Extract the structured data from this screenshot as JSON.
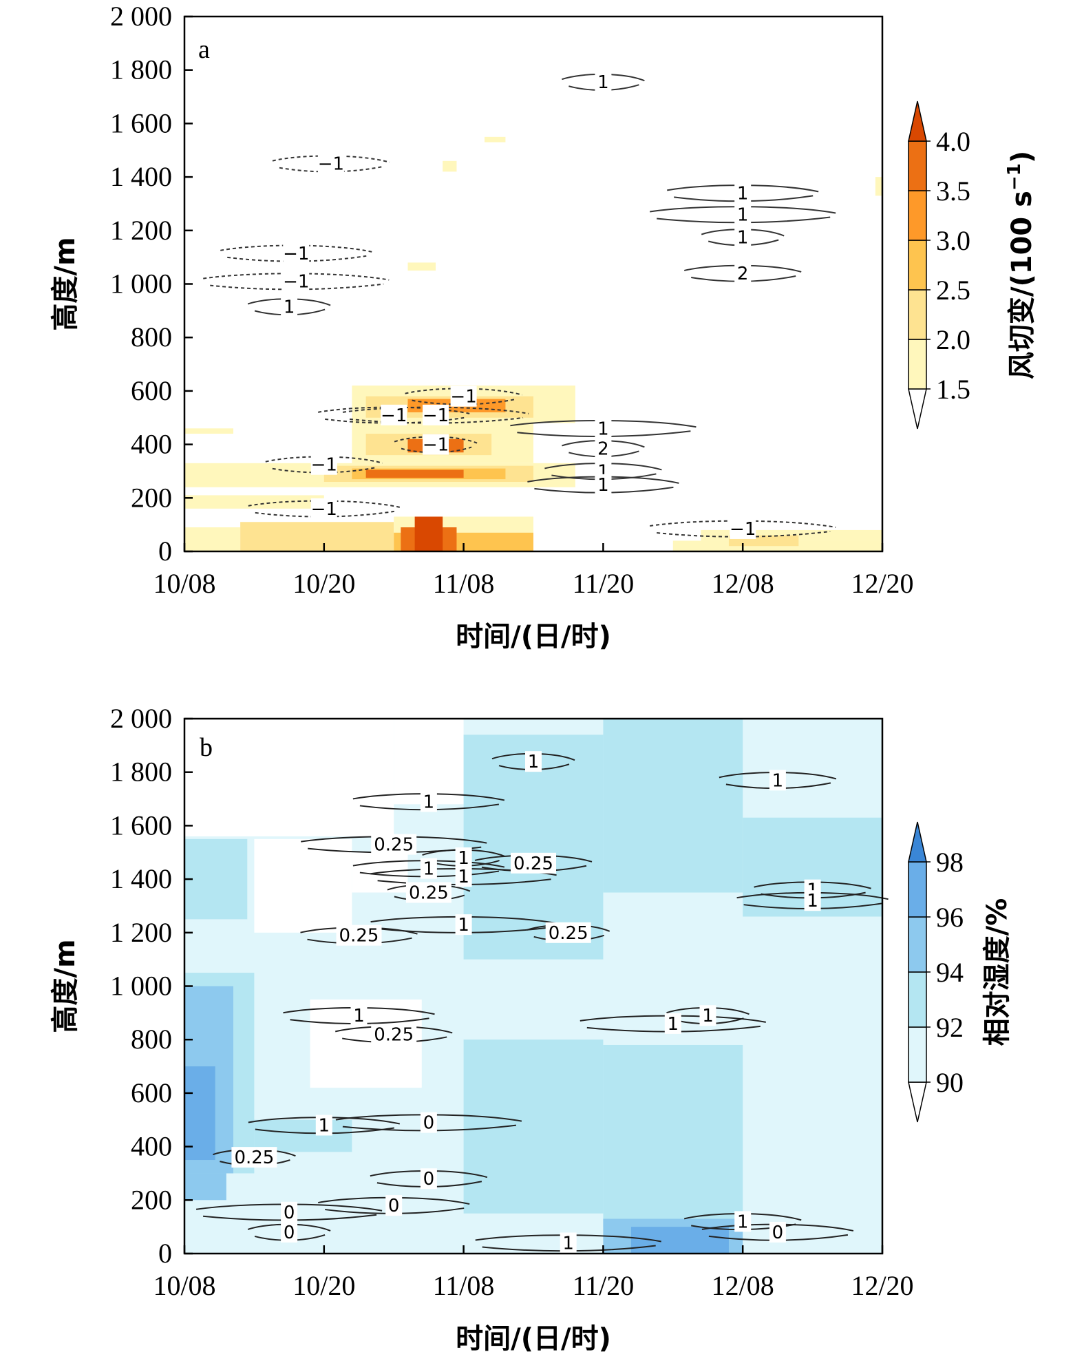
{
  "chart_data": [
    {
      "panel": "a",
      "type": "heatmap",
      "xlabel": "时间/(日/时)",
      "ylabel": "高度/m",
      "x_ticks": [
        "10/08",
        "10/20",
        "11/08",
        "11/20",
        "12/08",
        "12/20"
      ],
      "y_ticks": [
        "0",
        "200",
        "400",
        "600",
        "800",
        "1 000",
        "1 200",
        "1 400",
        "1 600",
        "1 800",
        "2 000"
      ],
      "ylim": [
        0,
        2000
      ],
      "colorbar": {
        "title": "风切变/(100 s",
        "title_sup": "−1",
        "title_end": ")",
        "levels": [
          "1.5",
          "2.0",
          "2.5",
          "3.0",
          "3.5",
          "4.0"
        ],
        "colors": [
          "#ffffff",
          "#fff7bc",
          "#fee391",
          "#fec44f",
          "#fe9929",
          "#ec7014",
          "#d94801"
        ]
      },
      "regions": [
        {
          "x0": 0.0,
          "x1": 0.4,
          "y0": 0,
          "y1": 90,
          "level": 1
        },
        {
          "x0": 0.4,
          "x1": 1.5,
          "y0": 0,
          "y1": 110,
          "level": 2
        },
        {
          "x0": 1.5,
          "x1": 2.5,
          "y0": 0,
          "y1": 130,
          "level": 1
        },
        {
          "x0": 1.5,
          "x1": 2.5,
          "y0": 0,
          "y1": 70,
          "level": 3
        },
        {
          "x0": 1.55,
          "x1": 1.95,
          "y0": 0,
          "y1": 90,
          "level": 5
        },
        {
          "x0": 1.65,
          "x1": 1.85,
          "y0": 0,
          "y1": 130,
          "level": 6
        },
        {
          "x0": 0.0,
          "x1": 1.0,
          "y0": 160,
          "y1": 210,
          "level": 1
        },
        {
          "x0": 0.0,
          "x1": 2.8,
          "y0": 240,
          "y1": 330,
          "level": 1
        },
        {
          "x0": 1.0,
          "x1": 2.5,
          "y0": 260,
          "y1": 320,
          "level": 2
        },
        {
          "x0": 1.2,
          "x1": 2.3,
          "y0": 270,
          "y1": 310,
          "level": 3
        },
        {
          "x0": 1.3,
          "x1": 2.0,
          "y0": 275,
          "y1": 305,
          "level": 5
        },
        {
          "x0": 1.2,
          "x1": 2.5,
          "y0": 330,
          "y1": 480,
          "level": 1
        },
        {
          "x0": 1.3,
          "x1": 2.2,
          "y0": 360,
          "y1": 440,
          "level": 2
        },
        {
          "x0": 1.6,
          "x1": 2.0,
          "y0": 370,
          "y1": 420,
          "level": 5
        },
        {
          "x0": 1.2,
          "x1": 2.8,
          "y0": 480,
          "y1": 620,
          "level": 1
        },
        {
          "x0": 1.3,
          "x1": 2.5,
          "y0": 500,
          "y1": 580,
          "level": 2
        },
        {
          "x0": 1.6,
          "x1": 2.3,
          "y0": 520,
          "y1": 570,
          "level": 4
        },
        {
          "x0": 0.0,
          "x1": 0.35,
          "y0": 440,
          "y1": 460,
          "level": 1
        },
        {
          "x0": 1.6,
          "x1": 1.8,
          "y0": 1050,
          "y1": 1080,
          "level": 1
        },
        {
          "x0": 1.85,
          "x1": 1.95,
          "y0": 1420,
          "y1": 1460,
          "level": 1
        },
        {
          "x0": 2.15,
          "x1": 2.3,
          "y0": 1530,
          "y1": 1550,
          "level": 1
        },
        {
          "x0": 3.5,
          "x1": 5.0,
          "y0": 0,
          "y1": 40,
          "level": 1
        },
        {
          "x0": 3.7,
          "x1": 5.0,
          "y0": 40,
          "y1": 80,
          "level": 1
        },
        {
          "x0": 3.9,
          "x1": 4.4,
          "y0": 20,
          "y1": 60,
          "level": 2
        },
        {
          "x0": 4.95,
          "x1": 5.0,
          "y0": 1330,
          "y1": 1400,
          "level": 1
        }
      ],
      "contour_labels": [
        {
          "text": "1",
          "x": 3.0,
          "y": 1755
        },
        {
          "text": "−1",
          "x": 1.05,
          "y": 1450
        },
        {
          "text": "1",
          "x": 4.0,
          "y": 1340
        },
        {
          "text": "1",
          "x": 4.0,
          "y": 1260
        },
        {
          "text": "1",
          "x": 4.0,
          "y": 1175
        },
        {
          "text": "2",
          "x": 4.0,
          "y": 1040
        },
        {
          "text": "−1",
          "x": 0.8,
          "y": 1115
        },
        {
          "text": "−1",
          "x": 0.8,
          "y": 1010
        },
        {
          "text": "1",
          "x": 0.75,
          "y": 915
        },
        {
          "text": "−1",
          "x": 2.0,
          "y": 580
        },
        {
          "text": "−1",
          "x": 1.5,
          "y": 510
        },
        {
          "text": "−1",
          "x": 1.8,
          "y": 510
        },
        {
          "text": "−1",
          "x": 1.8,
          "y": 400
        },
        {
          "text": "−1",
          "x": 1.0,
          "y": 325
        },
        {
          "text": "−1",
          "x": 1.0,
          "y": 160
        },
        {
          "text": "1",
          "x": 3.0,
          "y": 460
        },
        {
          "text": "2",
          "x": 3.0,
          "y": 385
        },
        {
          "text": "1",
          "x": 3.0,
          "y": 300
        },
        {
          "text": "1",
          "x": 3.0,
          "y": 250
        },
        {
          "text": "−1",
          "x": 4.0,
          "y": 85
        }
      ]
    },
    {
      "panel": "b",
      "type": "heatmap",
      "xlabel": "时间/(日/时)",
      "ylabel": "高度/m",
      "x_ticks": [
        "10/08",
        "10/20",
        "11/08",
        "11/20",
        "12/08",
        "12/20"
      ],
      "y_ticks": [
        "0",
        "200",
        "400",
        "600",
        "800",
        "1 000",
        "1 200",
        "1 400",
        "1 600",
        "1 800",
        "2 000"
      ],
      "ylim": [
        0,
        2000
      ],
      "colorbar": {
        "title": "相对湿度/%",
        "levels": [
          "90",
          "92",
          "94",
          "96",
          "98"
        ],
        "colors": [
          "#ffffff",
          "#e0f6fb",
          "#b4e6f2",
          "#8dc9ee",
          "#6aaee8",
          "#3a86d6"
        ]
      },
      "regions": [
        {
          "x0": 0.0,
          "x1": 5.0,
          "y0": 0,
          "y1": 2000,
          "level": 1
        },
        {
          "x0": 0.0,
          "x1": 1.5,
          "y0": 1560,
          "y1": 2000,
          "level": 0
        },
        {
          "x0": 1.5,
          "x1": 2.0,
          "y0": 1680,
          "y1": 2000,
          "level": 0
        },
        {
          "x0": 0.9,
          "x1": 1.7,
          "y0": 620,
          "y1": 950,
          "level": 0
        },
        {
          "x0": 0.5,
          "x1": 1.2,
          "y0": 1200,
          "y1": 1550,
          "level": 0
        },
        {
          "x0": 1.2,
          "x1": 1.6,
          "y0": 1350,
          "y1": 1500,
          "level": 0
        },
        {
          "x0": 0.0,
          "x1": 0.45,
          "y0": 1250,
          "y1": 1550,
          "level": 2
        },
        {
          "x0": 0.0,
          "x1": 0.5,
          "y0": 300,
          "y1": 1050,
          "level": 2
        },
        {
          "x0": 0.0,
          "x1": 0.35,
          "y0": 300,
          "y1": 1000,
          "level": 3
        },
        {
          "x0": 0.0,
          "x1": 0.22,
          "y0": 350,
          "y1": 700,
          "level": 4
        },
        {
          "x0": 0.0,
          "x1": 0.3,
          "y0": 200,
          "y1": 300,
          "level": 3
        },
        {
          "x0": 0.5,
          "x1": 1.2,
          "y0": 380,
          "y1": 500,
          "level": 2
        },
        {
          "x0": 2.0,
          "x1": 3.0,
          "y0": 1100,
          "y1": 1940,
          "level": 2
        },
        {
          "x0": 2.0,
          "x1": 3.0,
          "y0": 150,
          "y1": 800,
          "level": 2
        },
        {
          "x0": 3.0,
          "x1": 4.0,
          "y0": 1350,
          "y1": 2000,
          "level": 2
        },
        {
          "x0": 3.0,
          "x1": 4.0,
          "y0": 100,
          "y1": 780,
          "level": 2
        },
        {
          "x0": 4.0,
          "x1": 5.0,
          "y0": 1260,
          "y1": 1630,
          "level": 2
        },
        {
          "x0": 3.0,
          "x1": 4.0,
          "y0": 0,
          "y1": 130,
          "level": 3
        },
        {
          "x0": 3.2,
          "x1": 3.9,
          "y0": 0,
          "y1": 100,
          "level": 4
        }
      ],
      "contour_labels": [
        {
          "text": "1",
          "x": 2.5,
          "y": 1840
        },
        {
          "text": "1",
          "x": 4.25,
          "y": 1770
        },
        {
          "text": "1",
          "x": 1.75,
          "y": 1690
        },
        {
          "text": "0.25",
          "x": 1.5,
          "y": 1530
        },
        {
          "text": "1",
          "x": 2.0,
          "y": 1480
        },
        {
          "text": "0.25",
          "x": 2.5,
          "y": 1460
        },
        {
          "text": "1",
          "x": 1.75,
          "y": 1440
        },
        {
          "text": "1",
          "x": 2.0,
          "y": 1410
        },
        {
          "text": "0.25",
          "x": 1.75,
          "y": 1350
        },
        {
          "text": "1",
          "x": 4.5,
          "y": 1360
        },
        {
          "text": "1",
          "x": 4.5,
          "y": 1320
        },
        {
          "text": "1",
          "x": 2.0,
          "y": 1230
        },
        {
          "text": "0.25",
          "x": 2.75,
          "y": 1200
        },
        {
          "text": "0.25",
          "x": 1.25,
          "y": 1190
        },
        {
          "text": "1",
          "x": 1.25,
          "y": 890
        },
        {
          "text": "1",
          "x": 3.5,
          "y": 860
        },
        {
          "text": "1",
          "x": 3.75,
          "y": 890
        },
        {
          "text": "0.25",
          "x": 1.5,
          "y": 820
        },
        {
          "text": "1",
          "x": 1.0,
          "y": 480
        },
        {
          "text": "0",
          "x": 1.75,
          "y": 490
        },
        {
          "text": "0.25",
          "x": 0.5,
          "y": 360
        },
        {
          "text": "0",
          "x": 1.75,
          "y": 280
        },
        {
          "text": "0",
          "x": 1.5,
          "y": 180
        },
        {
          "text": "0",
          "x": 0.75,
          "y": 155
        },
        {
          "text": "0",
          "x": 0.75,
          "y": 80
        },
        {
          "text": "1",
          "x": 4.0,
          "y": 120
        },
        {
          "text": "0",
          "x": 4.25,
          "y": 80
        },
        {
          "text": "1",
          "x": 2.75,
          "y": 40
        }
      ]
    }
  ],
  "panel_letters": [
    "a",
    "b"
  ]
}
